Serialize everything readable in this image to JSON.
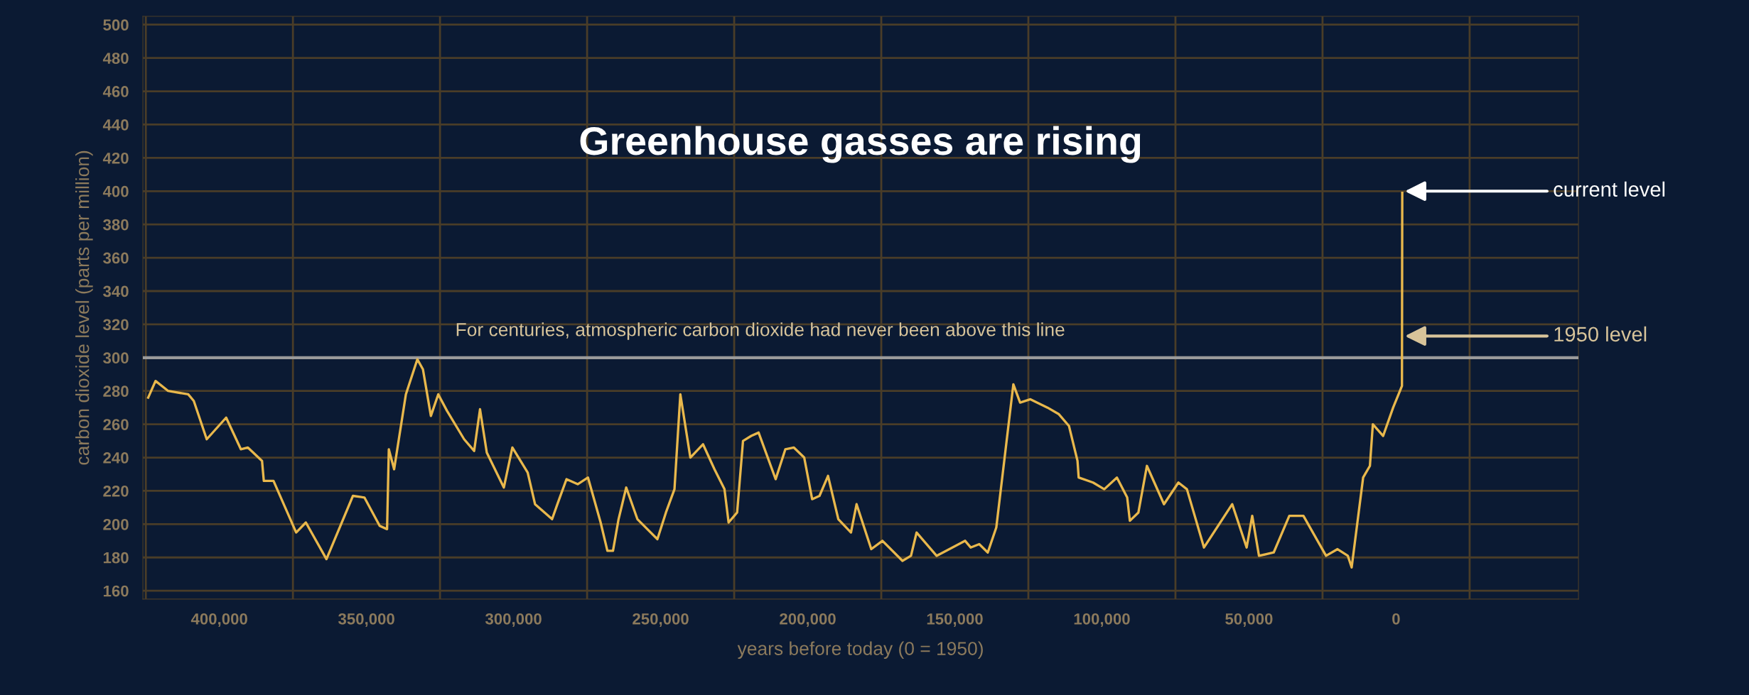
{
  "chart_data": {
    "type": "line",
    "title": "Greenhouse gasses are rising",
    "xlabel": "years before today (0 = 1950)",
    "ylabel": "carbon dioxide level (parts per million)",
    "x": [
      424200,
      421700,
      417400,
      410600,
      408700,
      404300,
      397700,
      392700,
      390300,
      385500,
      384900,
      381600,
      373900,
      370600,
      363600,
      354600,
      350700,
      345500,
      343000,
      342400,
      340600,
      336600,
      332700,
      330800,
      328100,
      325600,
      322600,
      316800,
      313400,
      311400,
      309100,
      303300,
      300400,
      295200,
      292700,
      286900,
      284900,
      282000,
      278200,
      274700,
      270400,
      268100,
      266200,
      264300,
      261700,
      257900,
      251100,
      248200,
      245300,
      243300,
      239900,
      235600,
      231700,
      228300,
      226900,
      224000,
      222000,
      219200,
      216700,
      210900,
      207600,
      204700,
      201200,
      198500,
      196000,
      193100,
      189600,
      185300,
      183400,
      178400,
      174600,
      167800,
      164900,
      163000,
      156200,
      146500,
      144600,
      141700,
      138800,
      135900,
      130100,
      127800,
      124300,
      118500,
      114600,
      111200,
      108300,
      107900,
      103000,
      99200,
      94900,
      91400,
      90500,
      87600,
      84700,
      78900,
      74000,
      71100,
      65300,
      55700,
      50800,
      48900,
      46600,
      41600,
      36300,
      31500,
      23800,
      19900,
      16400,
      15100,
      11200,
      8900,
      7900,
      4400,
      1000,
      -2000,
      -2100
    ],
    "series": [
      {
        "color": "#e9b84c",
        "values": [
          276,
          286,
          280,
          278,
          274,
          251,
          264,
          245,
          246,
          238,
          226,
          226,
          195,
          201,
          179,
          217,
          216,
          199,
          197,
          245,
          233,
          278,
          299,
          293,
          265,
          278,
          268,
          251,
          244,
          269,
          243,
          222,
          246,
          231,
          212,
          203,
          213,
          227,
          224,
          228,
          201,
          184,
          184,
          203,
          222,
          203,
          191,
          207,
          221,
          278,
          240,
          248,
          233,
          221,
          201,
          207,
          250,
          253,
          255,
          227,
          245,
          246,
          240,
          215,
          217,
          229,
          203,
          195,
          212,
          185,
          190,
          178,
          181,
          195,
          181,
          190,
          186,
          188,
          183,
          198,
          284,
          273,
          275,
          270,
          266,
          259,
          238,
          228,
          225,
          221,
          228,
          216,
          202,
          207,
          235,
          212,
          225,
          221,
          186,
          212,
          186,
          205,
          181,
          183,
          205,
          205,
          181,
          185,
          181,
          174,
          228,
          235,
          260,
          253,
          270,
          283,
          399
        ]
      }
    ],
    "xlim": [
      426000,
      -62000
    ],
    "ylim": [
      155,
      505
    ],
    "xticks": [
      {
        "value": 400000,
        "label": "400,000"
      },
      {
        "value": 350000,
        "label": "350,000"
      },
      {
        "value": 300000,
        "label": "300,000"
      },
      {
        "value": 250000,
        "label": "250,000"
      },
      {
        "value": 200000,
        "label": "200,000"
      },
      {
        "value": 150000,
        "label": "150,000"
      },
      {
        "value": 100000,
        "label": "100,000"
      },
      {
        "value": 50000,
        "label": "50,000"
      },
      0
    ],
    "yticks": [
      160,
      180,
      200,
      220,
      240,
      260,
      280,
      300,
      320,
      340,
      360,
      380,
      400,
      420,
      440,
      460,
      480,
      500
    ],
    "grid": true,
    "ref_lines": [
      {
        "axis": "y",
        "value": 300,
        "label": "For centuries, atmospheric carbon dioxide had never been above this line",
        "color": "#9a9a9a"
      }
    ],
    "annotations": [
      {
        "text": "current level",
        "x": -3000,
        "y": 400
      },
      {
        "text": "1950 level",
        "x": -3000,
        "y": 313
      }
    ]
  }
}
